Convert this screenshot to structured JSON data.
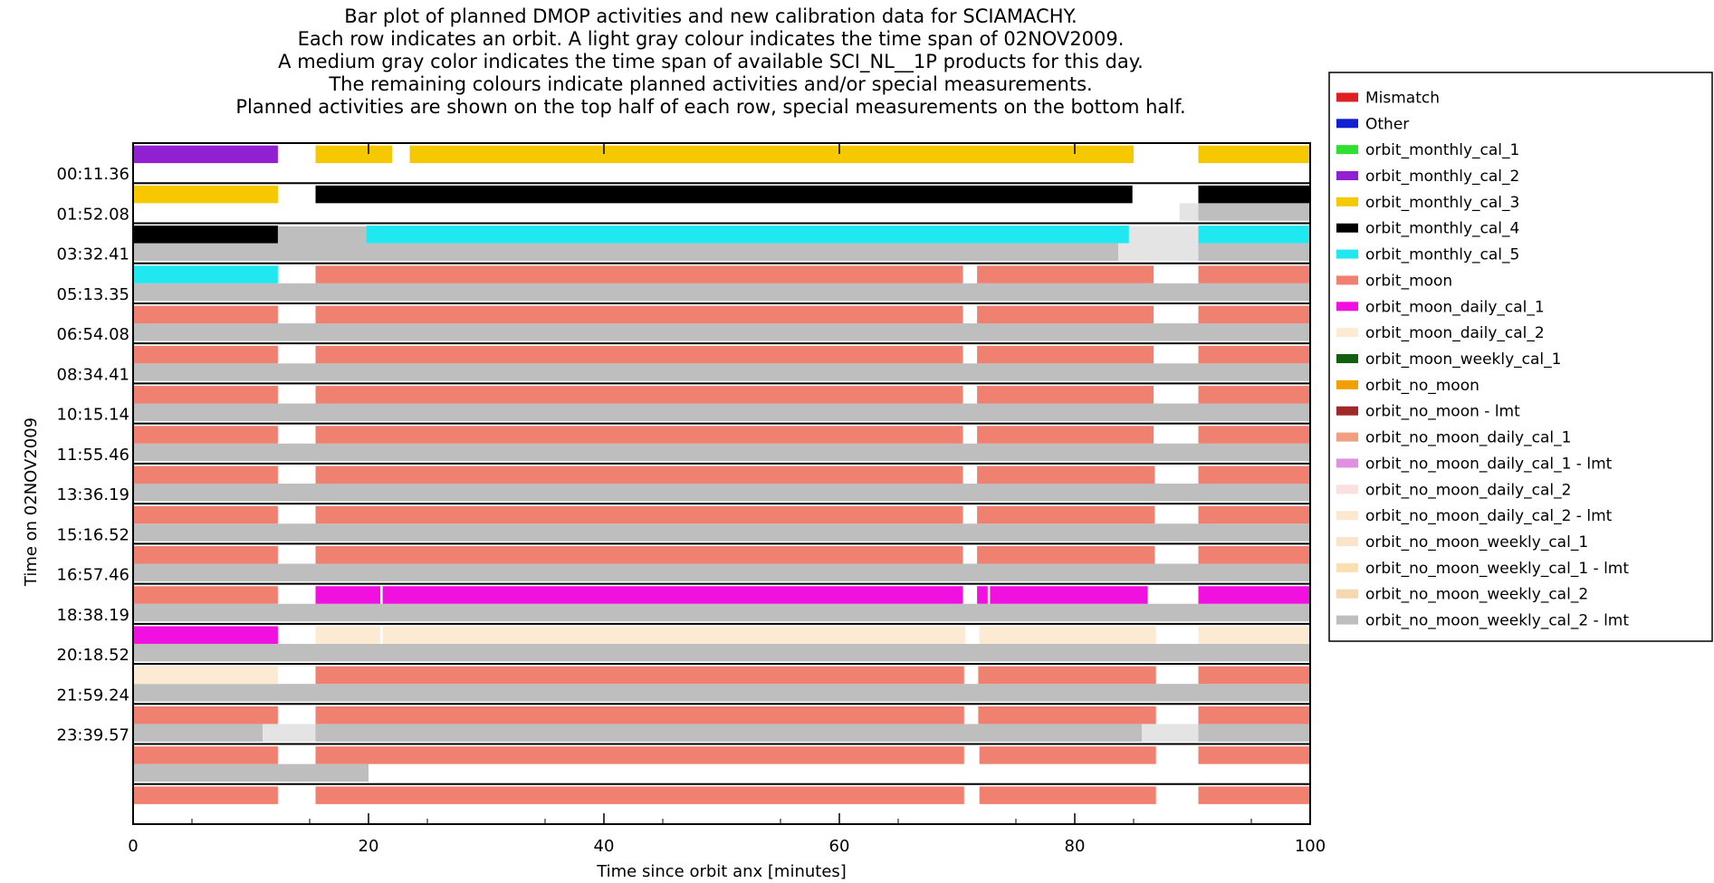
{
  "chart_data": {
    "type": "bar",
    "title_lines": [
      "Bar plot of planned DMOP activities and new calibration data for SCIAMACHY.",
      "Each row indicates an orbit. A light gray colour indicates the time span of 02NOV2009.",
      "A medium gray color indicates the time span of available SCI_NL__1P products for this day.",
      "The remaining colours indicate planned activities and/or special measurements.",
      "Planned activities are shown on the top half of each row, special measurements on the bottom half."
    ],
    "xlabel": "Time since orbit anx [minutes]",
    "ylabel": "Time on 02NOV2009",
    "xlim": [
      0,
      100
    ],
    "x_ticks": [
      0,
      20,
      40,
      60,
      80,
      100
    ],
    "row_labels": [
      "00:11.36",
      "01:52.08",
      "03:32.41",
      "05:13.35",
      "06:54.08",
      "08:34.41",
      "10:15.14",
      "11:55.46",
      "13:36.19",
      "15:16.52",
      "16:57.46",
      "18:38.19",
      "20:18.52",
      "21:59.24",
      "23:39.57"
    ],
    "colors": {
      "Mismatch": "#e02020",
      "Other": "#1020d0",
      "orbit_monthly_cal_1": "#30e030",
      "orbit_monthly_cal_2": "#9020d0",
      "orbit_monthly_cal_3": "#f5c800",
      "orbit_monthly_cal_4": "#000000",
      "orbit_monthly_cal_5": "#20e8f0",
      "orbit_moon": "#f08070",
      "orbit_moon_daily_cal_1": "#f010e0",
      "orbit_moon_daily_cal_2": "#fcebd2",
      "orbit_moon_weekly_cal_1": "#106010",
      "orbit_no_moon": "#f0a000",
      "orbit_no_moon - lmt": "#a02828",
      "orbit_no_moon_daily_cal_1": "#f0a080",
      "orbit_no_moon_daily_cal_1 - lmt": "#e090e0",
      "orbit_no_moon_daily_cal_2": "#fce0e0",
      "orbit_no_moon_daily_cal_2 - lmt": "#fce8d0",
      "orbit_no_moon_weekly_cal_1": "#fae4cc",
      "orbit_no_moon_weekly_cal_1 - lmt": "#fae0b0",
      "orbit_no_moon_weekly_cal_2": "#f5d8b0",
      "orbit_no_moon_weekly_cal_2 - lmt": "#bebebe",
      "available": "#bebebe",
      "day_span": "#e4e4e4"
    },
    "legend": [
      "Mismatch",
      "Other",
      "orbit_monthly_cal_1",
      "orbit_monthly_cal_2",
      "orbit_monthly_cal_3",
      "orbit_monthly_cal_4",
      "orbit_monthly_cal_5",
      "orbit_moon",
      "orbit_moon_daily_cal_1",
      "orbit_moon_daily_cal_2",
      "orbit_moon_weekly_cal_1",
      "orbit_no_moon",
      "orbit_no_moon - lmt",
      "orbit_no_moon_daily_cal_1",
      "orbit_no_moon_daily_cal_1 - lmt",
      "orbit_no_moon_daily_cal_2",
      "orbit_no_moon_daily_cal_2 - lmt",
      "orbit_no_moon_weekly_cal_1",
      "orbit_no_moon_weekly_cal_1 - lmt",
      "orbit_no_moon_weekly_cal_2",
      "orbit_no_moon_weekly_cal_2 - lmt"
    ],
    "legend_placement": "right",
    "rows": [
      {
        "top": [
          [
            0,
            12.3,
            "orbit_monthly_cal_2"
          ],
          [
            15.5,
            22,
            "orbit_monthly_cal_3"
          ],
          [
            23.5,
            85,
            "orbit_monthly_cal_3"
          ],
          [
            90.5,
            100,
            "orbit_monthly_cal_3"
          ]
        ],
        "bottom": []
      },
      {
        "top": [
          [
            0,
            12.3,
            "orbit_monthly_cal_3"
          ],
          [
            15.5,
            84.9,
            "orbit_monthly_cal_4"
          ],
          [
            90.5,
            100,
            "orbit_monthly_cal_4"
          ]
        ],
        "bottom": [
          [
            88.9,
            90.5,
            "day_span"
          ],
          [
            90.5,
            100,
            "available"
          ]
        ]
      },
      {
        "top": [
          [
            0,
            12.3,
            "orbit_monthly_cal_4"
          ],
          [
            19.8,
            84.6,
            "orbit_monthly_cal_5"
          ],
          [
            90.5,
            100,
            "orbit_monthly_cal_5"
          ]
        ],
        "bottom": [
          [
            0,
            83.7,
            "available"
          ],
          [
            83.7,
            90.5,
            "day_span"
          ],
          [
            90.5,
            100,
            "available"
          ]
        ],
        "bg": [
          [
            12.3,
            19.8,
            "available"
          ],
          [
            84.6,
            90.5,
            "day_span"
          ]
        ]
      },
      {
        "top": [
          [
            0,
            12.3,
            "orbit_monthly_cal_5"
          ],
          [
            15.5,
            70.5,
            "orbit_moon"
          ],
          [
            71.7,
            86.7,
            "orbit_moon"
          ],
          [
            90.5,
            100,
            "orbit_moon"
          ]
        ],
        "bottom": [
          [
            0,
            100,
            "available"
          ]
        ]
      },
      {
        "top": [
          [
            0,
            12.3,
            "orbit_moon"
          ],
          [
            15.5,
            70.5,
            "orbit_moon"
          ],
          [
            71.7,
            86.7,
            "orbit_moon"
          ],
          [
            90.5,
            100,
            "orbit_moon"
          ]
        ],
        "bottom": [
          [
            0,
            100,
            "available"
          ]
        ]
      },
      {
        "top": [
          [
            0,
            12.3,
            "orbit_moon"
          ],
          [
            15.5,
            70.5,
            "orbit_moon"
          ],
          [
            71.7,
            86.7,
            "orbit_moon"
          ],
          [
            90.5,
            100,
            "orbit_moon"
          ]
        ],
        "bottom": [
          [
            0,
            100,
            "available"
          ]
        ]
      },
      {
        "top": [
          [
            0,
            12.3,
            "orbit_moon"
          ],
          [
            15.5,
            70.5,
            "orbit_moon"
          ],
          [
            71.7,
            86.7,
            "orbit_moon"
          ],
          [
            90.5,
            100,
            "orbit_moon"
          ]
        ],
        "bottom": [
          [
            0,
            100,
            "available"
          ]
        ]
      },
      {
        "top": [
          [
            0,
            12.3,
            "orbit_moon"
          ],
          [
            15.5,
            70.5,
            "orbit_moon"
          ],
          [
            71.7,
            86.7,
            "orbit_moon"
          ],
          [
            90.5,
            100,
            "orbit_moon"
          ]
        ],
        "bottom": [
          [
            0,
            100,
            "available"
          ]
        ]
      },
      {
        "top": [
          [
            0,
            12.3,
            "orbit_moon"
          ],
          [
            15.5,
            70.5,
            "orbit_moon"
          ],
          [
            71.7,
            86.8,
            "orbit_moon"
          ],
          [
            90.5,
            100,
            "orbit_moon"
          ]
        ],
        "bottom": [
          [
            0,
            100,
            "available"
          ]
        ]
      },
      {
        "top": [
          [
            0,
            12.3,
            "orbit_moon"
          ],
          [
            15.5,
            70.5,
            "orbit_moon"
          ],
          [
            71.7,
            86.8,
            "orbit_moon"
          ],
          [
            90.5,
            100,
            "orbit_moon"
          ]
        ],
        "bottom": [
          [
            0,
            100,
            "available"
          ]
        ]
      },
      {
        "top": [
          [
            0,
            12.3,
            "orbit_moon"
          ],
          [
            15.5,
            70.5,
            "orbit_moon"
          ],
          [
            71.7,
            86.8,
            "orbit_moon"
          ],
          [
            90.5,
            100,
            "orbit_moon"
          ]
        ],
        "bottom": [
          [
            0,
            100,
            "available"
          ]
        ]
      },
      {
        "top": [
          [
            0,
            12.3,
            "orbit_moon"
          ],
          [
            15.5,
            21.0,
            "orbit_moon_daily_cal_1"
          ],
          [
            21.2,
            70.5,
            "orbit_moon_daily_cal_1"
          ],
          [
            71.7,
            72.6,
            "orbit_moon_daily_cal_1"
          ],
          [
            72.8,
            86.2,
            "orbit_moon_daily_cal_1"
          ],
          [
            90.5,
            100,
            "orbit_moon_daily_cal_1"
          ]
        ],
        "bottom": [
          [
            0,
            100,
            "available"
          ]
        ]
      },
      {
        "top": [
          [
            0,
            12.3,
            "orbit_moon_daily_cal_1"
          ],
          [
            15.5,
            21.0,
            "orbit_moon_daily_cal_2"
          ],
          [
            21.2,
            70.7,
            "orbit_moon_daily_cal_2"
          ],
          [
            71.9,
            86.9,
            "orbit_moon_daily_cal_2"
          ],
          [
            90.5,
            100,
            "orbit_moon_daily_cal_2"
          ]
        ],
        "bottom": [
          [
            0,
            100,
            "available"
          ]
        ]
      },
      {
        "top": [
          [
            0,
            12.3,
            "orbit_moon_daily_cal_2"
          ],
          [
            15.5,
            70.6,
            "orbit_moon"
          ],
          [
            71.8,
            86.9,
            "orbit_moon"
          ],
          [
            90.5,
            100,
            "orbit_moon"
          ]
        ],
        "bottom": [
          [
            0,
            100,
            "available"
          ]
        ]
      },
      {
        "top": [
          [
            0,
            12.3,
            "orbit_moon"
          ],
          [
            15.5,
            70.6,
            "orbit_moon"
          ],
          [
            71.8,
            86.9,
            "orbit_moon"
          ],
          [
            90.5,
            100,
            "orbit_moon"
          ]
        ],
        "bottom": [
          [
            0,
            11,
            "available"
          ],
          [
            11,
            15.5,
            "day_span"
          ],
          [
            15.5,
            85.7,
            "available"
          ],
          [
            85.7,
            90.5,
            "day_span"
          ],
          [
            90.5,
            100,
            "available"
          ]
        ]
      },
      {
        "top": [
          [
            0,
            12.3,
            "orbit_moon"
          ],
          [
            15.5,
            70.6,
            "orbit_moon"
          ],
          [
            71.9,
            86.9,
            "orbit_moon"
          ],
          [
            90.5,
            100,
            "orbit_moon"
          ]
        ],
        "bottom": [
          [
            0,
            20,
            "available"
          ]
        ]
      },
      {
        "top": [
          [
            0,
            12.3,
            "orbit_moon"
          ],
          [
            15.5,
            70.6,
            "orbit_moon"
          ],
          [
            71.9,
            86.9,
            "orbit_moon"
          ],
          [
            90.5,
            100,
            "orbit_moon"
          ]
        ],
        "bottom": []
      }
    ]
  }
}
